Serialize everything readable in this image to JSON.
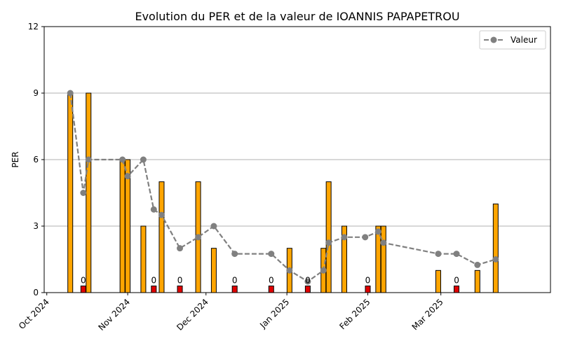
{
  "chart_data": {
    "type": "bar",
    "title": "Evolution du PER et de la valeur de IOANNIS PAPAPETROU",
    "xlabel": "",
    "ylabel": "PER",
    "ylim": [
      0,
      12
    ],
    "yticks": [
      "0",
      "3",
      "6",
      "9",
      "12"
    ],
    "xlim": [
      "2024-09-30",
      "2025-04-12"
    ],
    "xticks": [
      {
        "date": "2024-10-01",
        "label": "Oct 2024"
      },
      {
        "date": "2024-11-01",
        "label": "Nov 2024"
      },
      {
        "date": "2024-12-01",
        "label": "Dec 2024"
      },
      {
        "date": "2025-01-01",
        "label": "Jan 2025"
      },
      {
        "date": "2025-02-01",
        "label": "Feb 2025"
      },
      {
        "date": "2025-03-01",
        "label": "Mar 2025"
      }
    ],
    "grid": "horizontal",
    "legend_position": "top-right",
    "colors": {
      "bar": "#FFA500",
      "zero_bar": "#E00000",
      "bar_edge": "#000000",
      "line": "#808080",
      "grid": "#b0b0b0"
    },
    "bars": [
      {
        "date": "2024-10-10",
        "value": 9
      },
      {
        "date": "2024-10-15",
        "value": 0,
        "label": "0"
      },
      {
        "date": "2024-10-17",
        "value": 9
      },
      {
        "date": "2024-10-30",
        "value": 6
      },
      {
        "date": "2024-11-01",
        "value": 6
      },
      {
        "date": "2024-11-07",
        "value": 3
      },
      {
        "date": "2024-11-11",
        "value": 0,
        "label": "0"
      },
      {
        "date": "2024-11-14",
        "value": 5
      },
      {
        "date": "2024-11-21",
        "value": 0,
        "label": "0"
      },
      {
        "date": "2024-11-28",
        "value": 5
      },
      {
        "date": "2024-12-04",
        "value": 2
      },
      {
        "date": "2024-12-12",
        "value": 0,
        "label": "0"
      },
      {
        "date": "2024-12-26",
        "value": 0,
        "label": "0"
      },
      {
        "date": "2025-01-02",
        "value": 2
      },
      {
        "date": "2025-01-09",
        "value": 0,
        "label": "0"
      },
      {
        "date": "2025-01-15",
        "value": 2
      },
      {
        "date": "2025-01-17",
        "value": 5
      },
      {
        "date": "2025-01-23",
        "value": 3
      },
      {
        "date": "2025-02-01",
        "value": 0,
        "label": "0"
      },
      {
        "date": "2025-02-05",
        "value": 3
      },
      {
        "date": "2025-02-07",
        "value": 3
      },
      {
        "date": "2025-02-28",
        "value": 1
      },
      {
        "date": "2025-03-07",
        "value": 0,
        "label": "0"
      },
      {
        "date": "2025-03-15",
        "value": 1
      },
      {
        "date": "2025-03-22",
        "value": 4
      }
    ],
    "series": [
      {
        "name": "Valeur",
        "points": [
          {
            "date": "2024-10-10",
            "value": 9
          },
          {
            "date": "2024-10-15",
            "value": 4.5
          },
          {
            "date": "2024-10-17",
            "value": 6
          },
          {
            "date": "2024-10-30",
            "value": 6
          },
          {
            "date": "2024-11-01",
            "value": 5.25
          },
          {
            "date": "2024-11-07",
            "value": 6
          },
          {
            "date": "2024-11-11",
            "value": 3.75
          },
          {
            "date": "2024-11-14",
            "value": 3.5
          },
          {
            "date": "2024-11-21",
            "value": 2
          },
          {
            "date": "2024-11-28",
            "value": 2.5
          },
          {
            "date": "2024-12-04",
            "value": 3
          },
          {
            "date": "2024-12-12",
            "value": 1.75
          },
          {
            "date": "2024-12-26",
            "value": 1.75
          },
          {
            "date": "2025-01-02",
            "value": 1
          },
          {
            "date": "2025-01-09",
            "value": 0.5
          },
          {
            "date": "2025-01-15",
            "value": 1
          },
          {
            "date": "2025-01-17",
            "value": 2.25
          },
          {
            "date": "2025-01-23",
            "value": 2.5
          },
          {
            "date": "2025-01-31",
            "value": 2.5
          },
          {
            "date": "2025-02-05",
            "value": 2.75
          },
          {
            "date": "2025-02-07",
            "value": 2.25
          },
          {
            "date": "2025-02-28",
            "value": 1.75
          },
          {
            "date": "2025-03-07",
            "value": 1.75
          },
          {
            "date": "2025-03-15",
            "value": 1.25
          },
          {
            "date": "2025-03-22",
            "value": 1.5
          }
        ]
      }
    ]
  }
}
